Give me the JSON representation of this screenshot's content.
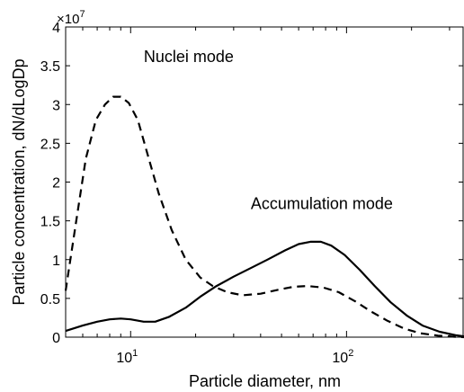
{
  "chart_data": {
    "type": "line",
    "xlabel": "Particle diameter, nm",
    "ylabel": "Particle concentration, dN/dLogDp",
    "x_scale": "log",
    "xlim": [
      5,
      350
    ],
    "ylim": [
      0,
      4
    ],
    "y_multiplier": {
      "base": "×10",
      "exponent": "7"
    },
    "y_ticks": [
      {
        "value": 0,
        "label": "0"
      },
      {
        "value": 0.5,
        "label": "0.5"
      },
      {
        "value": 1,
        "label": "1"
      },
      {
        "value": 1.5,
        "label": "1.5"
      },
      {
        "value": 2,
        "label": "2"
      },
      {
        "value": 2.5,
        "label": "2.5"
      },
      {
        "value": 3,
        "label": "3"
      },
      {
        "value": 3.5,
        "label": "3.5"
      },
      {
        "value": 4,
        "label": "4"
      }
    ],
    "x_ticks": [
      {
        "value": 10,
        "base": "10",
        "exponent": "1"
      },
      {
        "value": 100,
        "base": "10",
        "exponent": "2"
      }
    ],
    "grid": false,
    "series": [
      {
        "style": "dashed",
        "color": "#000000",
        "points": [
          [
            5.0,
            0.6
          ],
          [
            5.6,
            1.5
          ],
          [
            6.2,
            2.3
          ],
          [
            6.9,
            2.8
          ],
          [
            7.6,
            3.0
          ],
          [
            8.3,
            3.1
          ],
          [
            9.0,
            3.1
          ],
          [
            9.8,
            3.02
          ],
          [
            10.8,
            2.8
          ],
          [
            12.0,
            2.35
          ],
          [
            13.5,
            1.85
          ],
          [
            15.5,
            1.38
          ],
          [
            18.0,
            1.0
          ],
          [
            21.0,
            0.77
          ],
          [
            24.0,
            0.66
          ],
          [
            28.0,
            0.58
          ],
          [
            33.0,
            0.54
          ],
          [
            40.0,
            0.56
          ],
          [
            48.0,
            0.61
          ],
          [
            57.0,
            0.65
          ],
          [
            66.0,
            0.66
          ],
          [
            78.0,
            0.64
          ],
          [
            92.0,
            0.58
          ],
          [
            110.0,
            0.46
          ],
          [
            130.0,
            0.33
          ],
          [
            155.0,
            0.21
          ],
          [
            185.0,
            0.11
          ],
          [
            220.0,
            0.05
          ],
          [
            265.0,
            0.02
          ],
          [
            320.0,
            0.005
          ],
          [
            350.0,
            0.0
          ]
        ]
      },
      {
        "style": "solid",
        "color": "#000000",
        "points": [
          [
            5.0,
            0.08
          ],
          [
            6.0,
            0.15
          ],
          [
            7.0,
            0.2
          ],
          [
            8.0,
            0.23
          ],
          [
            9.0,
            0.24
          ],
          [
            10.0,
            0.23
          ],
          [
            11.5,
            0.2
          ],
          [
            13.0,
            0.2
          ],
          [
            15.0,
            0.26
          ],
          [
            18.0,
            0.38
          ],
          [
            21.0,
            0.52
          ],
          [
            25.0,
            0.66
          ],
          [
            30.0,
            0.78
          ],
          [
            36.0,
            0.89
          ],
          [
            43.0,
            1.0
          ],
          [
            52.0,
            1.12
          ],
          [
            60.0,
            1.2
          ],
          [
            68.0,
            1.23
          ],
          [
            76.0,
            1.23
          ],
          [
            85.0,
            1.18
          ],
          [
            98.0,
            1.06
          ],
          [
            115.0,
            0.87
          ],
          [
            135.0,
            0.66
          ],
          [
            160.0,
            0.45
          ],
          [
            190.0,
            0.28
          ],
          [
            225.0,
            0.15
          ],
          [
            270.0,
            0.07
          ],
          [
            320.0,
            0.025
          ],
          [
            350.0,
            0.01
          ]
        ]
      }
    ],
    "annotations": [
      {
        "text": "Nuclei mode",
        "x": 11.5,
        "y": 3.55
      },
      {
        "text": "Accumulation mode",
        "x": 36.0,
        "y": 1.65
      }
    ]
  }
}
